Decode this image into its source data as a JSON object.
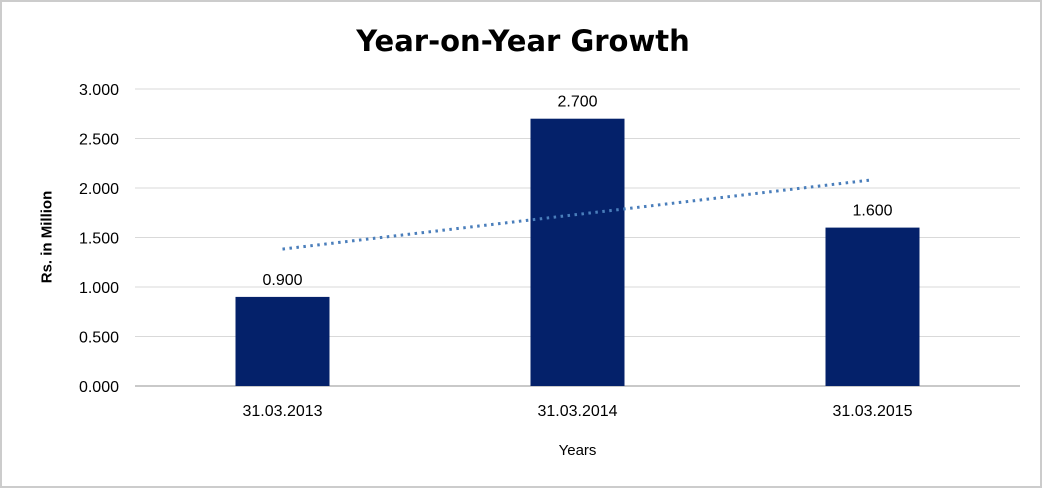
{
  "chart_data": {
    "type": "bar",
    "title": "Year-on-Year Growth",
    "xlabel": "Years",
    "ylabel": "Rs. in Million",
    "categories": [
      "31.03.2013",
      "31.03.2014",
      "31.03.2015"
    ],
    "values": [
      0.9,
      2.7,
      1.6
    ],
    "data_labels": [
      "0.900",
      "2.700",
      "1.600"
    ],
    "ylim": [
      0,
      3
    ],
    "ytick_step": 0.5,
    "ytick_labels": [
      "0.000",
      "0.500",
      "1.000",
      "1.500",
      "2.000",
      "2.500",
      "3.000"
    ],
    "grid": true,
    "legend": false,
    "colors": {
      "bar": "#04216A",
      "trendline": "#4A7EBB",
      "gridline": "#d9d9d9",
      "axis_line": "#c9c9c9",
      "text": "#000000"
    },
    "trendline": {
      "kind": "linear",
      "start_value": 1.383,
      "end_value": 2.083,
      "style": "dotted"
    }
  }
}
